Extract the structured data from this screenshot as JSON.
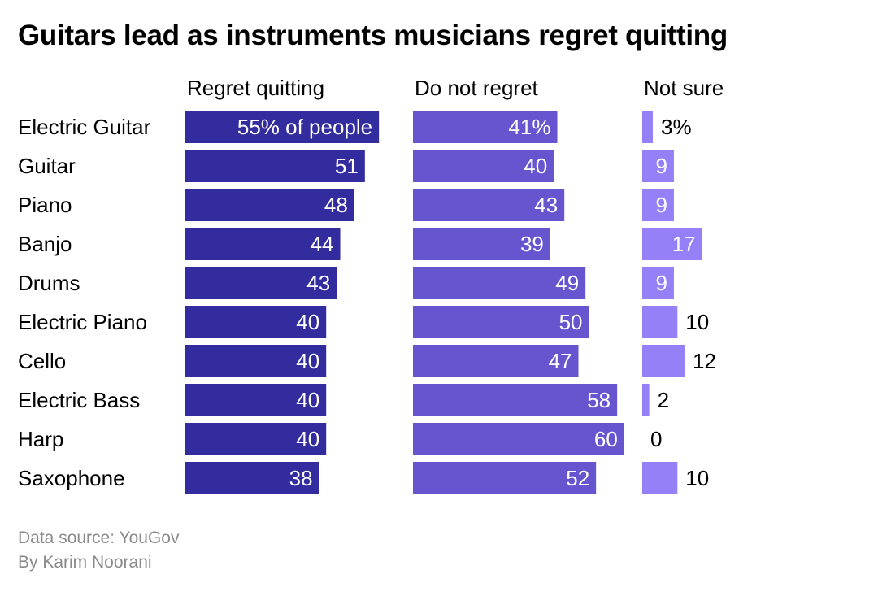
{
  "chart_data": {
    "type": "bar",
    "title": "Guitars lead as instruments musicians regret quitting",
    "categories": [
      "Electric Guitar",
      "Guitar",
      "Piano",
      "Banjo",
      "Drums",
      "Electric Piano",
      "Cello",
      "Electric Bass",
      "Harp",
      "Saxophone"
    ],
    "series": [
      {
        "name": "Regret quitting",
        "values": [
          55,
          51,
          48,
          44,
          43,
          40,
          40,
          40,
          40,
          38
        ],
        "color": "#332c9e",
        "first_label_suffix": "% of people"
      },
      {
        "name": "Do not regret",
        "values": [
          41,
          40,
          43,
          39,
          49,
          50,
          47,
          58,
          60,
          52
        ],
        "color": "#6655cf",
        "first_label_suffix": "%"
      },
      {
        "name": "Not sure",
        "values": [
          3,
          9,
          9,
          17,
          9,
          10,
          12,
          2,
          0,
          10
        ],
        "color": "#9580f8",
        "first_label_suffix": "%"
      }
    ],
    "unit": "percent",
    "grid": false
  },
  "footer": {
    "source": "Data source: YouGov",
    "byline": "By Karim Noorani"
  }
}
